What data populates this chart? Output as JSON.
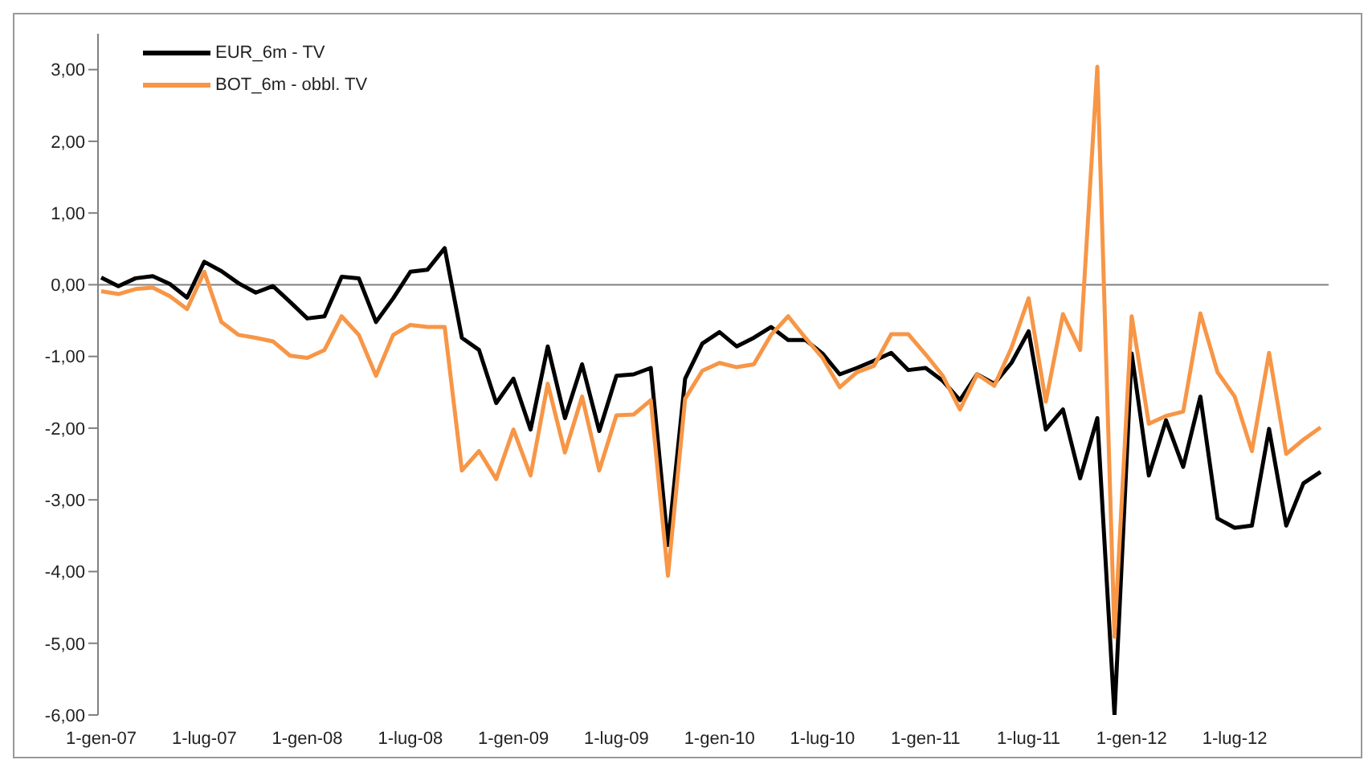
{
  "chart_data": {
    "type": "line",
    "categories": [
      "1-gen-07",
      null,
      null,
      null,
      null,
      null,
      "1-lug-07",
      null,
      null,
      null,
      null,
      null,
      "1-gen-08",
      null,
      null,
      null,
      null,
      null,
      "1-lug-08",
      null,
      null,
      null,
      null,
      null,
      "1-gen-09",
      null,
      null,
      null,
      null,
      null,
      "1-lug-09",
      null,
      null,
      null,
      null,
      null,
      "1-gen-10",
      null,
      null,
      null,
      null,
      null,
      "1-lug-10",
      null,
      null,
      null,
      null,
      null,
      "1-gen-11",
      null,
      null,
      null,
      null,
      null,
      "1-lug-11",
      null,
      null,
      null,
      null,
      null,
      "1-gen-12",
      null,
      null,
      null,
      null,
      null,
      "1-lug-12",
      null,
      null,
      null,
      null,
      null
    ],
    "series": [
      {
        "name": "EUR_6m - TV",
        "color": "#000000",
        "values": [
          0.1,
          -0.02,
          0.09,
          0.12,
          0.01,
          -0.18,
          0.32,
          0.19,
          0.02,
          -0.11,
          -0.02,
          -0.24,
          -0.47,
          -0.44,
          0.11,
          0.09,
          -0.52,
          -0.19,
          0.18,
          0.21,
          0.51,
          -0.74,
          -0.91,
          -1.65,
          -1.31,
          -2.02,
          -0.86,
          -1.86,
          -1.11,
          -2.04,
          -1.27,
          -1.25,
          -1.16,
          -3.63,
          -1.31,
          -0.82,
          -0.66,
          -0.86,
          -0.74,
          -0.59,
          -0.77,
          -0.77,
          -0.96,
          -1.25,
          -1.16,
          -1.06,
          -0.95,
          -1.19,
          -1.16,
          -1.34,
          -1.61,
          -1.25,
          -1.38,
          -1.09,
          -0.65,
          -2.02,
          -1.74,
          -2.7,
          -1.86,
          -6.0,
          -0.96,
          -2.66,
          -1.89,
          -2.54,
          -1.56,
          -3.26,
          -3.39,
          -3.36,
          -2.01,
          -3.36,
          -2.77,
          -2.61
        ]
      },
      {
        "name": "BOT_6m - obbl. TV",
        "color": "#f79646",
        "values": [
          -0.09,
          -0.13,
          -0.06,
          -0.04,
          -0.16,
          -0.34,
          0.18,
          -0.52,
          -0.7,
          -0.74,
          -0.79,
          -0.99,
          -1.02,
          -0.91,
          -0.44,
          -0.7,
          -1.27,
          -0.7,
          -0.56,
          -0.59,
          -0.59,
          -2.59,
          -2.32,
          -2.71,
          -2.02,
          -2.66,
          -1.38,
          -2.34,
          -1.56,
          -2.59,
          -1.82,
          -1.81,
          -1.61,
          -4.06,
          -1.59,
          -1.2,
          -1.09,
          -1.15,
          -1.11,
          -0.7,
          -0.44,
          -0.74,
          -1.02,
          -1.43,
          -1.22,
          -1.13,
          -0.69,
          -0.69,
          -0.97,
          -1.27,
          -1.74,
          -1.25,
          -1.41,
          -0.88,
          -0.19,
          -1.63,
          -0.41,
          -0.91,
          3.04,
          -4.91,
          -0.44,
          -1.94,
          -1.83,
          -1.77,
          -0.4,
          -1.22,
          -1.56,
          -2.32,
          -0.95,
          -2.36,
          -2.16,
          -1.99
        ]
      }
    ],
    "ylim": [
      -6,
      3.5
    ],
    "yticks": [
      {
        "value": -6,
        "label": "-6,00"
      },
      {
        "value": -5,
        "label": "-5,00"
      },
      {
        "value": -4,
        "label": "-4,00"
      },
      {
        "value": -3,
        "label": "-3,00"
      },
      {
        "value": -2,
        "label": "-2,00"
      },
      {
        "value": -1,
        "label": "-1,00"
      },
      {
        "value": 0,
        "label": "0,00"
      },
      {
        "value": 1,
        "label": "1,00"
      },
      {
        "value": 2,
        "label": "2,00"
      },
      {
        "value": 3,
        "label": "3,00"
      }
    ],
    "ref_lines": [
      {
        "axis": "y",
        "value": 0,
        "color": "#808080"
      }
    ],
    "grid": false,
    "legend": "top left",
    "marker": "none",
    "line_style": "solid"
  }
}
